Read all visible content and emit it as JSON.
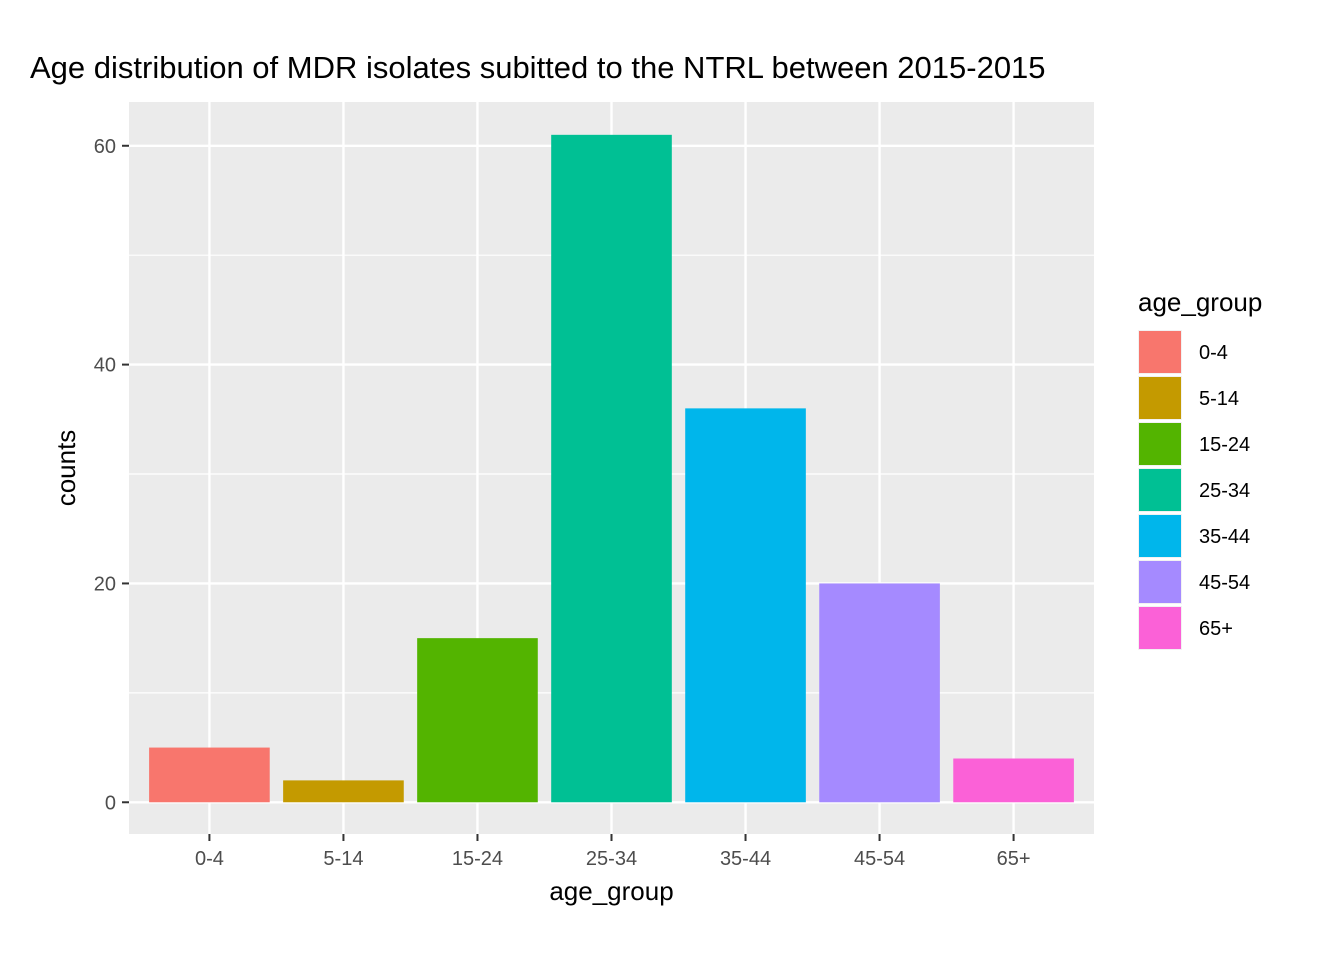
{
  "chart_data": {
    "type": "bar",
    "title": "Age distribution of MDR isolates subitted to the NTRL between 2015-2015",
    "xlabel": "age_group",
    "ylabel": "counts",
    "categories": [
      "0-4",
      "5-14",
      "15-24",
      "25-34",
      "35-44",
      "45-54",
      "65+"
    ],
    "values": [
      5,
      2,
      15,
      61,
      36,
      20,
      4
    ],
    "colors": [
      "#F8766D",
      "#C49A00",
      "#53B400",
      "#00C094",
      "#00B6EB",
      "#A58AFF",
      "#FB61D7"
    ],
    "ylim": [
      -2.9,
      64
    ],
    "yticks": [
      0,
      20,
      40,
      60
    ],
    "ytick_labels": [
      "0",
      "20",
      "40",
      "60"
    ],
    "grid": true,
    "panel_background": "#EBEBEB",
    "legend": {
      "title": "age_group",
      "position": "right",
      "entries": [
        "0-4",
        "5-14",
        "15-24",
        "25-34",
        "35-44",
        "45-54",
        "65+"
      ]
    }
  }
}
